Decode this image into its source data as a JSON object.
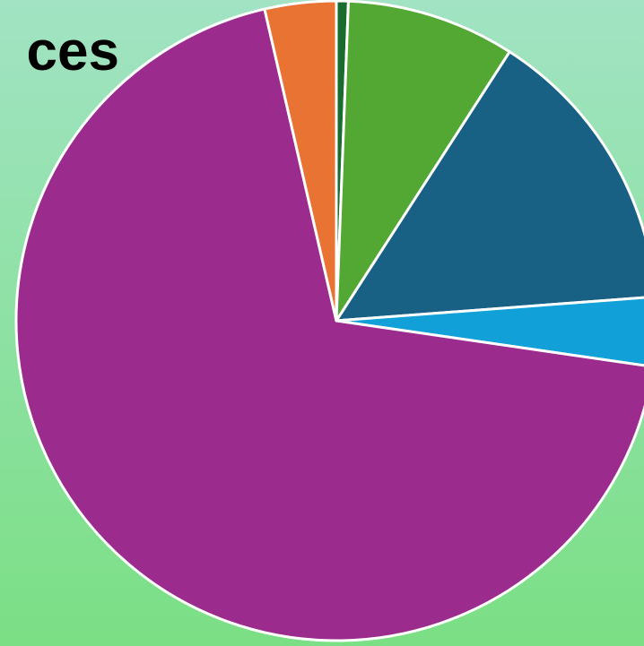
{
  "chart_data": {
    "type": "pie",
    "title": "ces",
    "categories": [
      null,
      null,
      null,
      null,
      null,
      null
    ],
    "values": [
      0.6,
      8.5,
      14.7,
      3.5,
      69.1,
      3.6
    ],
    "colors": [
      "#1a6b2e",
      "#52a832",
      "#186084",
      "#12a0d8",
      "#9c2b8e",
      "#e87333"
    ],
    "start_angle": 0,
    "direction": "clockwise"
  }
}
